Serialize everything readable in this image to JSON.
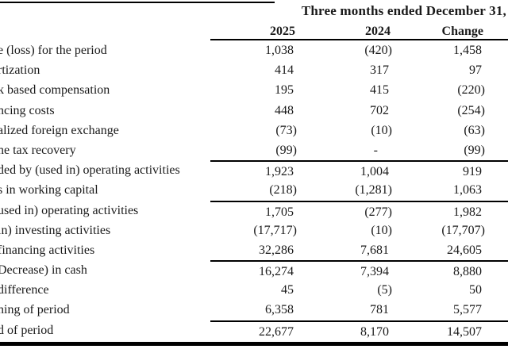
{
  "table": {
    "period_header": "Three months ended December 31,",
    "columns": [
      "2025",
      "2024",
      "Change"
    ],
    "rows": [
      {
        "label": "e (loss) for the period",
        "y2025": "1,038",
        "y2024": "(420)",
        "change": "1,458",
        "rule_above": false
      },
      {
        "label": "rtization",
        "y2025": "414",
        "y2024": "317",
        "change": "97",
        "rule_above": false
      },
      {
        "label": "k based compensation",
        "y2025": "195",
        "y2024": "415",
        "change": "(220)",
        "rule_above": false
      },
      {
        "label": "ncing costs",
        "y2025": "448",
        "y2024": "702",
        "change": "(254)",
        "rule_above": false
      },
      {
        "label": "alized foreign exchange",
        "y2025": "(73)",
        "y2024": "(10)",
        "change": "(63)",
        "rule_above": false
      },
      {
        "label": "ne tax recovery",
        "y2025": "(99)",
        "y2024": "-",
        "change": "(99)",
        "rule_above": false
      },
      {
        "label": "ded by (used in) operating activities",
        "y2025": "1,923",
        "y2024": "1,004",
        "change": "919",
        "rule_above": true
      },
      {
        "label": "s in working capital",
        "y2025": "(218)",
        "y2024": "(1,281)",
        "change": "1,063",
        "rule_above": false
      },
      {
        "label": "used in) operating activities",
        "y2025": "1,705",
        "y2024": "(277)",
        "change": "1,982",
        "rule_above": true
      },
      {
        "label": "in) investing activities",
        "y2025": "(17,717)",
        "y2024": "(10)",
        "change": "(17,707)",
        "rule_above": false
      },
      {
        "label": "financing activities",
        "y2025": "32,286",
        "y2024": "7,681",
        "change": "24,605",
        "rule_above": false
      },
      {
        "label": "Decrease) in cash",
        "y2025": "16,274",
        "y2024": "7,394",
        "change": "8,880",
        "rule_above": true
      },
      {
        "label": "difference",
        "y2025": "45",
        "y2024": "(5)",
        "change": "50",
        "rule_above": false
      },
      {
        "label": "ning of period",
        "y2025": "6,358",
        "y2024": "781",
        "change": "5,577",
        "rule_above": false
      },
      {
        "label": "d of period",
        "y2025": "22,677",
        "y2024": "8,170",
        "change": "14,507",
        "rule_above": true
      }
    ]
  },
  "colors": {
    "text": "#1a1a1a",
    "rule": "#000000",
    "background": "#ffffff"
  }
}
